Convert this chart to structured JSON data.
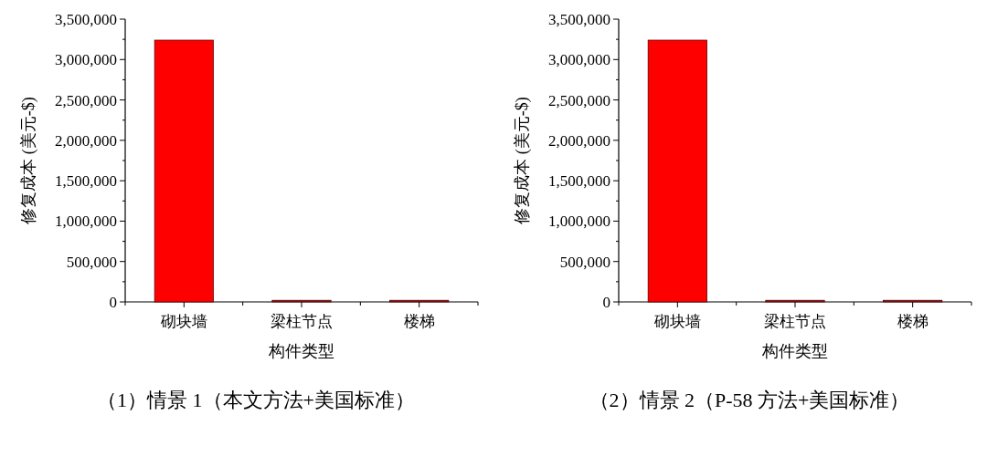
{
  "chart_data": [
    {
      "type": "bar",
      "title": "（1）情景 1（本文方法+美国标准）",
      "xlabel": "构件类型",
      "ylabel": "修复成本 (美元-$)",
      "categories": [
        "砌块墙",
        "梁柱节点",
        "楼梯"
      ],
      "values": [
        3240000,
        20000,
        20000
      ],
      "colors": [
        "#ff0000",
        "#8b1a1a",
        "#8b1a1a"
      ],
      "ylim": [
        0,
        3500000
      ],
      "yticks": [
        {
          "value": 0,
          "label": "0"
        },
        {
          "value": 250000,
          "label": null
        },
        {
          "value": 500000,
          "label": "500,000"
        },
        {
          "value": 750000,
          "label": null
        },
        {
          "value": 1000000,
          "label": "1,000,000"
        },
        {
          "value": 1250000,
          "label": null
        },
        {
          "value": 1500000,
          "label": "1,500,000"
        },
        {
          "value": 1750000,
          "label": null
        },
        {
          "value": 2000000,
          "label": "2,000,000"
        },
        {
          "value": 2250000,
          "label": null
        },
        {
          "value": 2500000,
          "label": "2,500,000"
        },
        {
          "value": 2750000,
          "label": null
        },
        {
          "value": 3000000,
          "label": "3,000,000"
        },
        {
          "value": 3250000,
          "label": null
        },
        {
          "value": 3500000,
          "label": "3,500,000"
        }
      ]
    },
    {
      "type": "bar",
      "title": "（2）情景 2（P-58 方法+美国标准）",
      "xlabel": "构件类型",
      "ylabel": "修复成本 (美元-$)",
      "categories": [
        "砌块墙",
        "梁柱节点",
        "楼梯"
      ],
      "values": [
        3240000,
        20000,
        20000
      ],
      "colors": [
        "#ff0000",
        "#8b1a1a",
        "#8b1a1a"
      ],
      "ylim": [
        0,
        3500000
      ],
      "yticks": [
        {
          "value": 0,
          "label": "0"
        },
        {
          "value": 250000,
          "label": null
        },
        {
          "value": 500000,
          "label": "500,000"
        },
        {
          "value": 750000,
          "label": null
        },
        {
          "value": 1000000,
          "label": "1,000,000"
        },
        {
          "value": 1250000,
          "label": null
        },
        {
          "value": 1500000,
          "label": "1,500,000"
        },
        {
          "value": 1750000,
          "label": null
        },
        {
          "value": 2000000,
          "label": "2,000,000"
        },
        {
          "value": 2250000,
          "label": null
        },
        {
          "value": 2500000,
          "label": "2,500,000"
        },
        {
          "value": 2750000,
          "label": null
        },
        {
          "value": 3000000,
          "label": "3,000,000"
        },
        {
          "value": 3250000,
          "label": null
        },
        {
          "value": 3500000,
          "label": "3,500,000"
        }
      ]
    }
  ]
}
